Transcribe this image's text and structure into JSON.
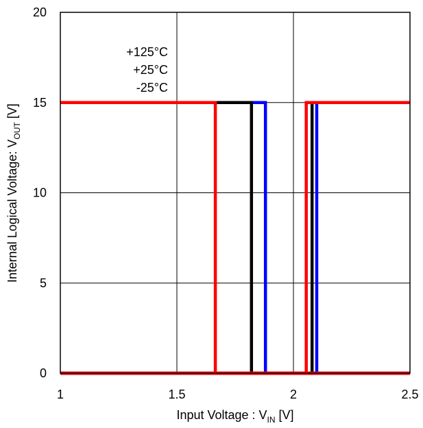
{
  "chart_data": {
    "type": "line",
    "xlabel": {
      "main": "Input Voltage : V",
      "sub": "IN",
      "unit": " [V]"
    },
    "ylabel": {
      "main": "Internal Logical Voltage: V",
      "sub": "OUT",
      "unit": " [V]"
    },
    "xlim": [
      1,
      2.5
    ],
    "ylim": [
      0,
      20
    ],
    "x_ticks": [
      "1",
      "1.5",
      "2",
      "2.5"
    ],
    "y_ticks": [
      "0",
      "5",
      "10",
      "15",
      "20"
    ],
    "grid": true,
    "annotations": [
      "+125°C",
      "+25°C",
      "-25°C"
    ],
    "series": [
      {
        "color": "#0000ff",
        "x": [
          1,
          1.88,
          1.88,
          2.5
        ],
        "y": [
          15,
          15,
          0,
          0
        ],
        "path_up": [
          1,
          2.1,
          2.1,
          2.5
        ],
        "path_up_y": [
          0,
          0,
          15,
          15
        ]
      },
      {
        "color": "#000000",
        "x": [
          1,
          1.82,
          1.82,
          2.5
        ],
        "y": [
          15,
          15,
          0,
          0
        ],
        "path_up": [
          1,
          2.08,
          2.08,
          2.5
        ],
        "path_up_y": [
          0,
          0,
          15,
          15
        ]
      },
      {
        "color": "#ff0000",
        "x": [
          1,
          1.665,
          1.665,
          2.5
        ],
        "y": [
          15,
          15,
          0,
          0
        ],
        "path_up": [
          1,
          2.055,
          2.055,
          2.5
        ],
        "path_up_y": [
          0,
          0,
          15,
          15
        ]
      }
    ]
  }
}
